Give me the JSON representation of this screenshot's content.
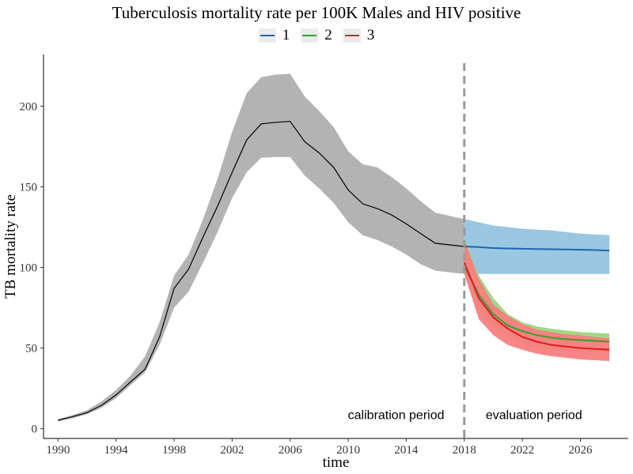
{
  "chart_data": {
    "type": "line",
    "title": "Tuberculosis mortality rate per 100K Males and HIV positive",
    "xlabel": "time",
    "ylabel": "TB mortality rate",
    "xlim": [
      1989,
      2029.3
    ],
    "ylim": [
      -6,
      232
    ],
    "x_ticks": [
      1990,
      1994,
      1998,
      2002,
      2006,
      2010,
      2014,
      2018,
      2022,
      2026
    ],
    "y_ticks": [
      0,
      50,
      100,
      150,
      200
    ],
    "grid": false,
    "legend_position": "top",
    "legend": [
      {
        "name": "1",
        "color": "#1f66b0"
      },
      {
        "name": "2",
        "color": "#33a02c"
      },
      {
        "name": "3",
        "color": "#e31a1c"
      }
    ],
    "vline": {
      "x": 2018,
      "color": "#999999",
      "style": "dashed"
    },
    "annotations": [
      {
        "text": "calibration period",
        "x": 2013.3,
        "y": 9
      },
      {
        "text": "evaluation period",
        "x": 2022.8,
        "y": 9
      }
    ],
    "calibration": {
      "color": "#000000",
      "band_color": "#b3b3b3",
      "x": [
        1990,
        1991,
        1992,
        1993,
        1994,
        1995,
        1996,
        1997,
        1998,
        1999,
        2000,
        2001,
        2002,
        2003,
        2004,
        2005,
        2006,
        2007,
        2008,
        2009,
        2010,
        2011,
        2012,
        2013,
        2014,
        2015,
        2016,
        2017,
        2018
      ],
      "y": [
        5.3,
        7.5,
        10,
        14.5,
        21,
        29,
        37,
        57,
        87,
        99,
        119,
        138,
        159,
        179,
        189,
        190,
        190.5,
        178,
        171,
        162,
        148,
        139.5,
        136.5,
        132.5,
        127,
        121,
        115,
        114,
        113
      ],
      "lower": [
        4.5,
        6.5,
        9,
        13,
        19,
        27,
        35,
        52,
        75,
        85,
        103,
        122,
        143,
        159,
        168,
        168.5,
        168.5,
        157,
        149,
        140,
        128,
        120,
        117,
        113,
        108,
        102,
        98,
        97,
        96
      ],
      "upper": [
        6,
        8.5,
        11.5,
        17,
        24,
        33,
        45,
        66,
        95,
        108,
        130,
        155,
        184,
        208,
        218,
        219.5,
        220,
        206,
        197,
        187,
        172,
        164,
        162,
        156,
        149,
        141,
        134,
        132,
        130
      ]
    },
    "series": [
      {
        "name": "1",
        "color": "#1f66b0",
        "band_color": "#94c4df",
        "x": [
          2018,
          2019,
          2020,
          2021,
          2022,
          2023,
          2024,
          2025,
          2026,
          2027,
          2028
        ],
        "y": [
          113,
          112.6,
          112,
          111.8,
          111.6,
          111.4,
          111.3,
          111.2,
          111,
          110.8,
          110.5
        ],
        "lower": [
          96,
          96,
          96,
          96,
          96,
          96,
          96,
          96,
          96,
          96,
          96
        ],
        "upper": [
          130,
          128,
          126,
          125,
          124,
          123.5,
          123,
          122,
          121,
          120.5,
          120
        ]
      },
      {
        "name": "2",
        "color": "#33a02c",
        "band_color": "#9cd67e",
        "x": [
          2018,
          2019,
          2020,
          2021,
          2022,
          2023,
          2024,
          2025,
          2026,
          2027,
          2028
        ],
        "y": [
          101,
          83,
          71,
          64,
          60.5,
          58,
          56.5,
          55.5,
          55,
          54.5,
          54
        ],
        "lower": [
          97,
          73,
          62,
          57,
          53,
          50.5,
          49,
          48.5,
          48,
          47.5,
          47
        ],
        "upper": [
          118,
          95,
          81,
          71,
          66,
          63.5,
          62,
          61,
          60,
          59.5,
          59
        ]
      },
      {
        "name": "3",
        "color": "#e31a1c",
        "band_color": "#f88080",
        "x": [
          2018,
          2019,
          2020,
          2021,
          2022,
          2023,
          2024,
          2025,
          2026,
          2027,
          2028
        ],
        "y": [
          103,
          81,
          69,
          62,
          57,
          54,
          52,
          51,
          50,
          49.5,
          49
        ],
        "lower": [
          96,
          68,
          58,
          52,
          49,
          46.5,
          45,
          44,
          43,
          42.5,
          42
        ],
        "upper": [
          117,
          93,
          77,
          70,
          65,
          61.5,
          60,
          58.5,
          58,
          57,
          56
        ]
      }
    ]
  }
}
